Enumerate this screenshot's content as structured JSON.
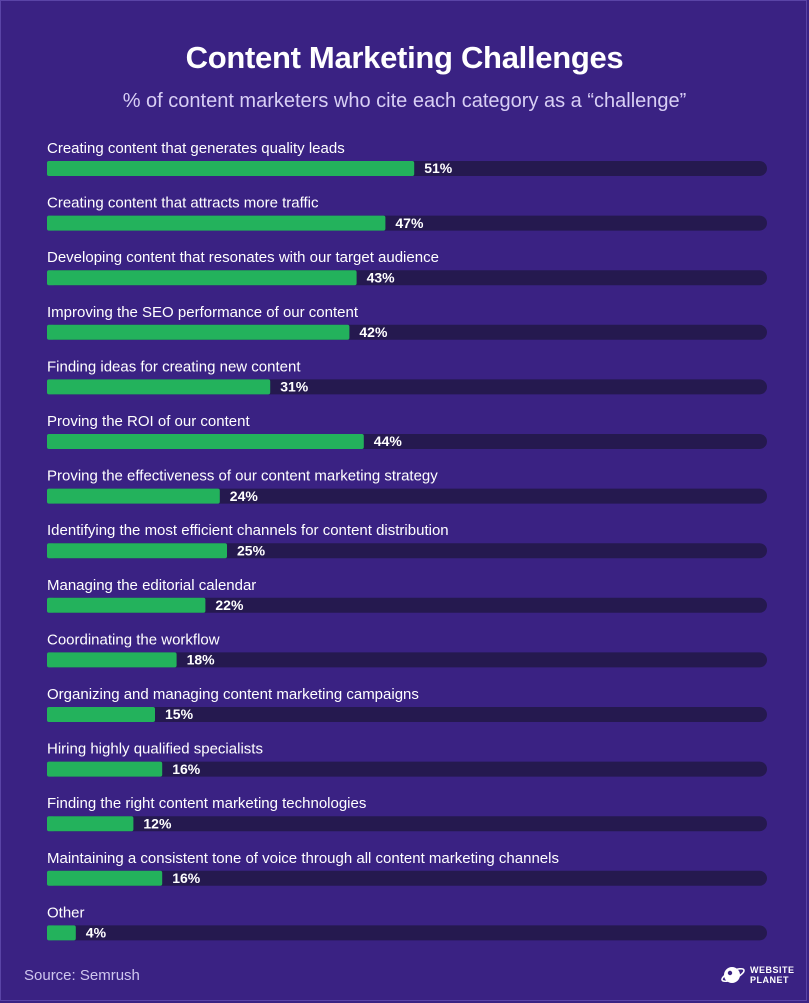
{
  "header": {
    "title": "Content Marketing Challenges",
    "subtitle": "% of content marketers who cite each category as a “challenge”"
  },
  "footer": {
    "source": "Source: Semrush",
    "logo_line1": "WEBSITE",
    "logo_line2": "PLANET",
    "logo_icon": "planet-icon"
  },
  "colors": {
    "background": "#3a2283",
    "bar_fill": "#23b25c",
    "bar_track": "#25194f"
  },
  "chart_data": {
    "type": "bar",
    "orientation": "horizontal",
    "title": "Content Marketing Challenges",
    "subtitle": "% of content marketers who cite each category as a “challenge”",
    "categories": [
      "Creating content that generates quality leads",
      "Creating content that attracts more traffic",
      "Developing content that resonates with our target audience",
      "Improving the SEO performance of our content",
      "Finding ideas for creating new content",
      "Proving the ROI of our content",
      "Proving the effectiveness of our content marketing strategy",
      "Identifying the most efficient channels for content distribution",
      "Managing the editorial calendar",
      "Coordinating the workflow",
      "Organizing and managing content marketing campaigns",
      "Hiring highly qualified specialists",
      "Finding the right content marketing technologies",
      "Maintaining a consistent tone of voice through all content marketing channels",
      "Other"
    ],
    "values": [
      51,
      47,
      43,
      42,
      31,
      44,
      24,
      25,
      22,
      18,
      15,
      16,
      12,
      16,
      4
    ],
    "value_labels": [
      "51%",
      "47%",
      "43%",
      "42%",
      "31%",
      "44%",
      "24%",
      "25%",
      "22%",
      "18%",
      "15%",
      "16%",
      "12%",
      "16%",
      "4%"
    ],
    "xlim": [
      0,
      100
    ],
    "grid": false,
    "legend": "none"
  }
}
